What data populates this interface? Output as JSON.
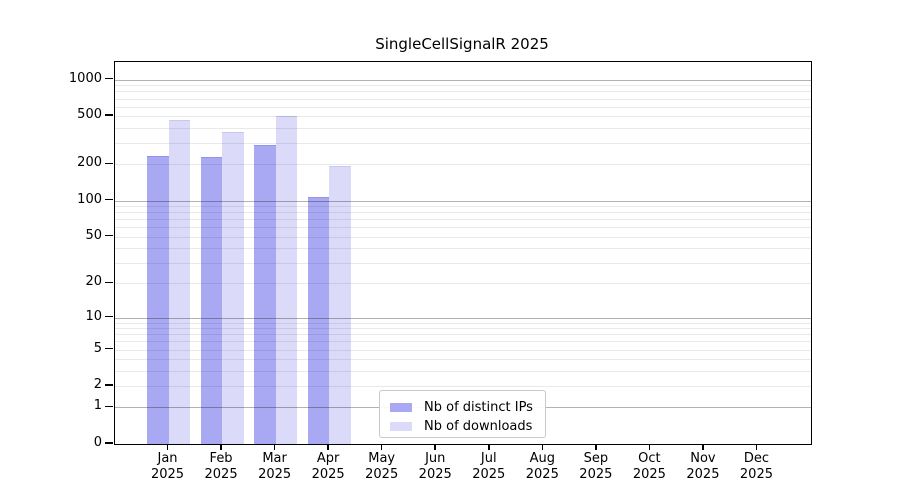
{
  "chart_data": {
    "type": "bar",
    "title": "SingleCellSignalR 2025",
    "categories": [
      "Jan",
      "Feb",
      "Mar",
      "Apr",
      "May",
      "Jun",
      "Jul",
      "Aug",
      "Sep",
      "Oct",
      "Nov",
      "Dec"
    ],
    "category_year": "2025",
    "series": [
      {
        "name": "Nb of distinct IPs",
        "color": "#a9a9f3",
        "edge_color": "#9393e8",
        "values": [
          234,
          230,
          292,
          107,
          null,
          null,
          null,
          null,
          null,
          null,
          null,
          null
        ]
      },
      {
        "name": "Nb of downloads",
        "color": "#dbdbf9",
        "edge_color": "#c8c8f1",
        "values": [
          463,
          369,
          506,
          195,
          null,
          null,
          null,
          null,
          null,
          null,
          null,
          null
        ]
      }
    ],
    "y_ticks": [
      0,
      1,
      2,
      5,
      10,
      20,
      50,
      100,
      200,
      500,
      1000
    ],
    "y_scale": "log10(1+x)",
    "ylim": [
      0,
      1400
    ],
    "grid": {
      "orientation": "horizontal",
      "major_ticks": [
        1,
        10,
        100,
        1000
      ],
      "major_color": "rgba(0,0,0,0.30)",
      "minor_color": "rgba(0,0,0,0.085)"
    },
    "legend_position": "bottom-center",
    "frame_color": "#000000"
  }
}
